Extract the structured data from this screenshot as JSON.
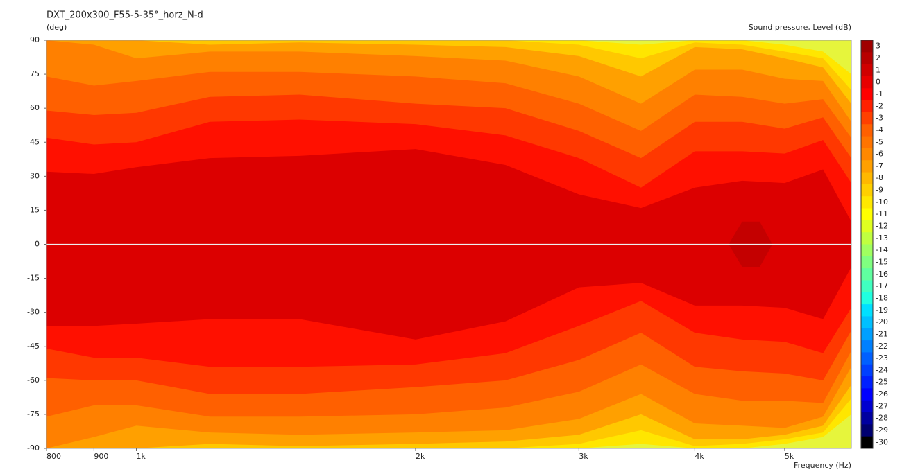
{
  "chart_data": {
    "type": "contour",
    "title": "DXT_200x300_F55-5-35°_horz_N-d",
    "y_label": "(deg)",
    "colorbar_label": "Sound pressure, Level (dB)",
    "x_label": "Frequency (Hz)",
    "x_scale": "log",
    "xlim": [
      800,
      5900
    ],
    "xticks": [
      800,
      900,
      {
        "value": 1000,
        "label": "1k"
      },
      {
        "value": 2000,
        "label": "2k"
      },
      {
        "value": 3000,
        "label": "3k"
      },
      {
        "value": 4000,
        "label": "4k"
      },
      {
        "value": 5000,
        "label": "5k"
      }
    ],
    "ylim": [
      -90,
      90
    ],
    "yticks": [
      90,
      75,
      60,
      45,
      30,
      15,
      0,
      -15,
      -30,
      -45,
      -60,
      -75,
      -90
    ],
    "zero_line": true,
    "background": "#e6f53c",
    "x": [
      800,
      900,
      1000,
      1200,
      1500,
      2000,
      2500,
      3000,
      3500,
      4000,
      4500,
      5000,
      5500,
      5900
    ],
    "contours": [
      {
        "color": "#ffe600",
        "upper": [
          90,
          90,
          90,
          90,
          90,
          90,
          90,
          90,
          88,
          90,
          90,
          88,
          85,
          75
        ],
        "lower": [
          -90,
          -90,
          -90,
          -90,
          -90,
          -90,
          -90,
          -90,
          -88,
          -90,
          -90,
          -88,
          -85,
          -75
        ]
      },
      {
        "color": "#ffc800",
        "upper": [
          90,
          90,
          90,
          90,
          90,
          90,
          90,
          88,
          82,
          89,
          88,
          85,
          82,
          68
        ],
        "lower": [
          -90,
          -90,
          -90,
          -90,
          -90,
          -90,
          -90,
          -88,
          -82,
          -89,
          -88,
          -86,
          -83,
          -68
        ]
      },
      {
        "color": "#ffa000",
        "upper": [
          90,
          90,
          90,
          88,
          89,
          88,
          87,
          83,
          74,
          87,
          86,
          82,
          78,
          62
        ],
        "lower": [
          -90,
          -90,
          -90,
          -88,
          -89,
          -88,
          -87,
          -84,
          -75,
          -86,
          -86,
          -84,
          -80,
          -62
        ]
      },
      {
        "color": "#ff8000",
        "upper": [
          90,
          88,
          82,
          85,
          85,
          83,
          81,
          74,
          62,
          77,
          77,
          73,
          72,
          54
        ],
        "lower": [
          -90,
          -85,
          -80,
          -83,
          -84,
          -83,
          -82,
          -77,
          -66,
          -79,
          -80,
          -81,
          -76,
          -54
        ]
      },
      {
        "color": "#ff6000",
        "upper": [
          74,
          70,
          72,
          76,
          76,
          74,
          71,
          62,
          50,
          66,
          65,
          62,
          64,
          47
        ],
        "lower": [
          -76,
          -71,
          -71,
          -76,
          -76,
          -75,
          -72,
          -65,
          -53,
          -66,
          -69,
          -69,
          -70,
          -47
        ]
      },
      {
        "color": "#ff3800",
        "upper": [
          59,
          57,
          58,
          65,
          66,
          62,
          60,
          50,
          38,
          54,
          54,
          51,
          56,
          38
        ],
        "lower": [
          -59,
          -60,
          -60,
          -66,
          -66,
          -63,
          -60,
          -51,
          -39,
          -54,
          -56,
          -57,
          -60,
          -38
        ]
      },
      {
        "color": "#ff1000",
        "upper": [
          47,
          44,
          45,
          54,
          55,
          53,
          48,
          38,
          25,
          41,
          41,
          40,
          46,
          27
        ],
        "lower": [
          -46,
          -50,
          -50,
          -54,
          -54,
          -53,
          -48,
          -36,
          -25,
          -39,
          -42,
          -43,
          -48,
          -28
        ]
      },
      {
        "color": "#dc0000",
        "upper": [
          32,
          31,
          34,
          38,
          39,
          42,
          35,
          22,
          16,
          25,
          28,
          27,
          33,
          10
        ],
        "lower": [
          -36,
          -36,
          -35,
          -33,
          -33,
          -42,
          -34,
          -19,
          -17,
          -27,
          -27,
          -28,
          -33,
          -10
        ]
      },
      {
        "color": "#c40000",
        "x": [
          4350,
          4500,
          4700,
          4850
        ],
        "upper": [
          0,
          10,
          10,
          0
        ],
        "lower": [
          0,
          -10,
          -10,
          0
        ]
      }
    ],
    "levels": [
      3,
      2,
      1,
      0,
      -1,
      -2,
      -3,
      -4,
      -5,
      -6,
      -7,
      -8,
      -9,
      -10,
      -11,
      -12,
      -13,
      -14,
      -15,
      -16,
      -17,
      -18,
      -19,
      -20,
      -21,
      -22,
      -23,
      -24,
      -25,
      -26,
      -27,
      -28,
      -29,
      -30
    ],
    "level_colors": [
      "#a00000",
      "#b80000",
      "#d00000",
      "#e80000",
      "#ff0000",
      "#ff2000",
      "#ff4000",
      "#ff6000",
      "#ff7400",
      "#ff8800",
      "#ffa000",
      "#ffb800",
      "#ffd000",
      "#ffe800",
      "#ffff00",
      "#e0ff20",
      "#c0ff40",
      "#a0ff60",
      "#80ff80",
      "#60ffa0",
      "#40ffc0",
      "#20ffe0",
      "#00e0ff",
      "#00c0ff",
      "#00a0ff",
      "#0080ff",
      "#0060ff",
      "#0040ff",
      "#0020ff",
      "#0000ff",
      "#0000d0",
      "#0000a0",
      "#000070",
      "#000000"
    ]
  }
}
